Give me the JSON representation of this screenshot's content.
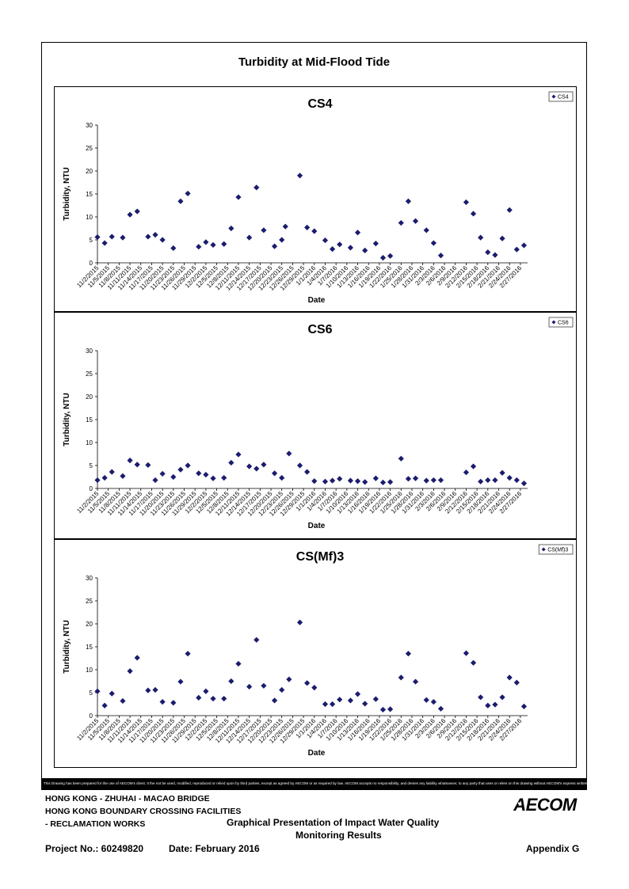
{
  "page": {
    "main_title": "Turbidity at Mid-Flood Tide",
    "disclaimer": "This Drawing has been prepared for the use of AECOM's client. It the not be used, modified, reproduced or relied upon by third parties, except as agreed by AECOM or as required by law. AECOM accepts no responsibility, and denies any liability whatsoever, to any party that uses or relies on this drawing without AECOM's express written consent.",
    "footer": {
      "line1": "HONG KONG - ZHUHAI - MACAO BRIDGE",
      "line2": "HONG KONG BOUNDARY CROSSING FACILITIES",
      "line3": "- RECLAMATION WORKS",
      "report_title_line1": "Graphical Presentation of Impact Water Quality",
      "report_title_line2": "Monitoring Results",
      "project_no": "Project No.: 60249820",
      "date": "Date: February 2016",
      "appendix": "Appendix G",
      "logo_text": "AECOM"
    },
    "colors": {
      "marker": "#1c1c6e",
      "border": "#000000"
    }
  },
  "chart_data": [
    {
      "type": "scatter",
      "title": "CS4",
      "xlabel": "Date",
      "ylabel": "Turbidity, NTU",
      "ylim": [
        0,
        30
      ],
      "yticks": [
        0,
        5,
        10,
        15,
        20,
        25,
        30
      ],
      "xlim": [
        "11/2/2015",
        "2/29/2016"
      ],
      "x_tick_labels": [
        "11/2/2015",
        "11/5/2015",
        "11/8/2015",
        "11/11/2015",
        "11/14/2015",
        "11/17/2015",
        "11/20/2015",
        "11/23/2015",
        "11/26/2015",
        "11/29/2015",
        "12/2/2015",
        "12/5/2015",
        "12/8/2015",
        "12/11/2015",
        "12/14/2015",
        "12/17/2015",
        "12/20/2015",
        "12/23/2015",
        "12/26/2015",
        "12/29/2015",
        "1/1/2016",
        "1/4/2016",
        "1/7/2016",
        "1/10/2016",
        "1/13/2016",
        "1/16/2016",
        "1/19/2016",
        "1/22/2016",
        "1/25/2016",
        "1/28/2016",
        "1/31/2016",
        "2/3/2016",
        "2/6/2016",
        "2/9/2016",
        "2/12/2016",
        "2/15/2016",
        "2/18/2016",
        "2/21/2016",
        "2/24/2016",
        "2/27/2016"
      ],
      "legend": {
        "label": "CS4",
        "position": "top-right"
      },
      "grid": false,
      "series": [
        {
          "name": "CS4",
          "points": [
            [
              "11/2/2015",
              5.6
            ],
            [
              "11/4/2015",
              4.3
            ],
            [
              "11/6/2015",
              5.7
            ],
            [
              "11/9/2015",
              5.5
            ],
            [
              "11/11/2015",
              10.5
            ],
            [
              "11/13/2015",
              11.2
            ],
            [
              "11/16/2015",
              5.7
            ],
            [
              "11/18/2015",
              6.1
            ],
            [
              "11/20/2015",
              5.0
            ],
            [
              "11/23/2015",
              3.2
            ],
            [
              "11/25/2015",
              13.4
            ],
            [
              "11/27/2015",
              15.1
            ],
            [
              "11/30/2015",
              3.5
            ],
            [
              "12/2/2015",
              4.5
            ],
            [
              "12/4/2015",
              3.9
            ],
            [
              "12/7/2015",
              4.1
            ],
            [
              "12/9/2015",
              7.5
            ],
            [
              "12/11/2015",
              14.3
            ],
            [
              "12/14/2015",
              5.5
            ],
            [
              "12/16/2015",
              16.4
            ],
            [
              "12/18/2015",
              7.1
            ],
            [
              "12/21/2015",
              3.6
            ],
            [
              "12/23/2015",
              5.0
            ],
            [
              "12/24/2015",
              7.9
            ],
            [
              "12/28/2015",
              19.0
            ],
            [
              "12/30/2015",
              7.7
            ],
            [
              "1/1/2016",
              6.9
            ],
            [
              "1/4/2016",
              4.9
            ],
            [
              "1/6/2016",
              3.0
            ],
            [
              "1/8/2016",
              4.0
            ],
            [
              "1/11/2016",
              3.3
            ],
            [
              "1/13/2016",
              6.6
            ],
            [
              "1/15/2016",
              2.7
            ],
            [
              "1/18/2016",
              4.2
            ],
            [
              "1/20/2016",
              1.1
            ],
            [
              "1/22/2016",
              1.5
            ],
            [
              "1/25/2016",
              8.7
            ],
            [
              "1/27/2016",
              13.4
            ],
            [
              "1/29/2016",
              9.1
            ],
            [
              "2/1/2016",
              7.1
            ],
            [
              "2/3/2016",
              4.3
            ],
            [
              "2/5/2016",
              1.6
            ],
            [
              "2/12/2016",
              13.2
            ],
            [
              "2/14/2016",
              10.7
            ],
            [
              "2/16/2016",
              5.5
            ],
            [
              "2/18/2016",
              2.3
            ],
            [
              "2/20/2016",
              1.7
            ],
            [
              "2/22/2016",
              5.3
            ],
            [
              "2/24/2016",
              11.5
            ],
            [
              "2/26/2016",
              2.9
            ],
            [
              "2/28/2016",
              3.8
            ]
          ]
        }
      ]
    },
    {
      "type": "scatter",
      "title": "CS6",
      "xlabel": "Date",
      "ylabel": "Turbidity, NTU",
      "ylim": [
        0,
        30
      ],
      "yticks": [
        0,
        5,
        10,
        15,
        20,
        25,
        30
      ],
      "xlim": [
        "11/2/2015",
        "2/29/2016"
      ],
      "x_tick_labels": [
        "11/2/2015",
        "11/5/2015",
        "11/8/2015",
        "11/11/2015",
        "11/14/2015",
        "11/17/2015",
        "11/20/2015",
        "11/23/2015",
        "11/26/2015",
        "11/29/2015",
        "12/2/2015",
        "12/5/2015",
        "12/8/2015",
        "12/11/2015",
        "12/14/2015",
        "12/17/2015",
        "12/20/2015",
        "12/23/2015",
        "12/26/2015",
        "12/29/2015",
        "1/1/2016",
        "1/4/2016",
        "1/7/2016",
        "1/10/2016",
        "1/13/2016",
        "1/16/2016",
        "1/19/2016",
        "1/22/2016",
        "1/25/2016",
        "1/28/2016",
        "1/31/2016",
        "2/3/2016",
        "2/6/2016",
        "2/9/2016",
        "2/12/2016",
        "2/15/2016",
        "2/18/2016",
        "2/21/2016",
        "2/24/2016",
        "2/27/2016"
      ],
      "legend": {
        "label": "CS6",
        "position": "top-right"
      },
      "grid": false,
      "series": [
        {
          "name": "CS6",
          "points": [
            [
              "11/2/2015",
              1.8
            ],
            [
              "11/4/2015",
              2.3
            ],
            [
              "11/6/2015",
              3.6
            ],
            [
              "11/9/2015",
              2.7
            ],
            [
              "11/11/2015",
              6.1
            ],
            [
              "11/13/2015",
              5.2
            ],
            [
              "11/16/2015",
              5.1
            ],
            [
              "11/18/2015",
              1.8
            ],
            [
              "11/20/2015",
              3.2
            ],
            [
              "11/23/2015",
              2.5
            ],
            [
              "11/25/2015",
              4.1
            ],
            [
              "11/27/2015",
              5.0
            ],
            [
              "11/30/2015",
              3.3
            ],
            [
              "12/2/2015",
              3.0
            ],
            [
              "12/4/2015",
              2.2
            ],
            [
              "12/7/2015",
              2.3
            ],
            [
              "12/9/2015",
              5.6
            ],
            [
              "12/11/2015",
              7.4
            ],
            [
              "12/14/2015",
              4.8
            ],
            [
              "12/16/2015",
              4.3
            ],
            [
              "12/18/2015",
              5.2
            ],
            [
              "12/21/2015",
              3.3
            ],
            [
              "12/23/2015",
              2.3
            ],
            [
              "12/25/2015",
              7.6
            ],
            [
              "12/28/2015",
              5.0
            ],
            [
              "12/30/2015",
              3.6
            ],
            [
              "1/1/2016",
              1.6
            ],
            [
              "1/4/2016",
              1.5
            ],
            [
              "1/6/2016",
              1.7
            ],
            [
              "1/8/2016",
              2.1
            ],
            [
              "1/11/2016",
              1.7
            ],
            [
              "1/13/2016",
              1.6
            ],
            [
              "1/15/2016",
              1.4
            ],
            [
              "1/18/2016",
              2.2
            ],
            [
              "1/20/2016",
              1.3
            ],
            [
              "1/22/2016",
              1.4
            ],
            [
              "1/25/2016",
              6.5
            ],
            [
              "1/27/2016",
              2.1
            ],
            [
              "1/29/2016",
              2.2
            ],
            [
              "2/1/2016",
              1.7
            ],
            [
              "2/3/2016",
              1.8
            ],
            [
              "2/5/2016",
              1.8
            ],
            [
              "2/12/2016",
              3.5
            ],
            [
              "2/14/2016",
              4.8
            ],
            [
              "2/16/2016",
              1.5
            ],
            [
              "2/18/2016",
              1.8
            ],
            [
              "2/20/2016",
              1.8
            ],
            [
              "2/22/2016",
              3.4
            ],
            [
              "2/24/2016",
              2.3
            ],
            [
              "2/26/2016",
              1.8
            ],
            [
              "2/28/2016",
              1.1
            ]
          ]
        }
      ]
    },
    {
      "type": "scatter",
      "title": "CS(Mf)3",
      "xlabel": "Date",
      "ylabel": "Turbidity, NTU",
      "ylim": [
        0,
        30
      ],
      "yticks": [
        0,
        5,
        10,
        15,
        20,
        25,
        30
      ],
      "xlim": [
        "11/2/2015",
        "2/29/2016"
      ],
      "x_tick_labels": [
        "11/2/2015",
        "11/5/2015",
        "11/8/2015",
        "11/11/2015",
        "11/14/2015",
        "11/17/2015",
        "11/20/2015",
        "11/23/2015",
        "11/26/2015",
        "11/29/2015",
        "12/2/2015",
        "12/5/2015",
        "12/8/2015",
        "12/11/2015",
        "12/14/2015",
        "12/17/2015",
        "12/20/2015",
        "12/23/2015",
        "12/26/2015",
        "12/29/2015",
        "1/1/2016",
        "1/4/2016",
        "1/7/2016",
        "1/10/2016",
        "1/13/2016",
        "1/16/2016",
        "1/19/2016",
        "1/22/2016",
        "1/25/2016",
        "1/28/2016",
        "1/31/2016",
        "2/3/2016",
        "2/6/2016",
        "2/9/2016",
        "2/12/2016",
        "2/15/2016",
        "2/18/2016",
        "2/21/2016",
        "2/24/2016",
        "2/27/2016"
      ],
      "legend": {
        "label": "CS(Mf)3",
        "position": "top-right"
      },
      "grid": false,
      "series": [
        {
          "name": "CS(Mf)3",
          "points": [
            [
              "11/2/2015",
              5.3
            ],
            [
              "11/4/2015",
              2.2
            ],
            [
              "11/6/2015",
              4.8
            ],
            [
              "11/9/2015",
              3.2
            ],
            [
              "11/11/2015",
              9.7
            ],
            [
              "11/13/2015",
              12.6
            ],
            [
              "11/16/2015",
              5.5
            ],
            [
              "11/18/2015",
              5.6
            ],
            [
              "11/20/2015",
              3.0
            ],
            [
              "11/23/2015",
              2.8
            ],
            [
              "11/25/2015",
              7.4
            ],
            [
              "11/27/2015",
              13.5
            ],
            [
              "11/30/2015",
              3.9
            ],
            [
              "12/2/2015",
              5.3
            ],
            [
              "12/4/2015",
              3.7
            ],
            [
              "12/7/2015",
              3.7
            ],
            [
              "12/9/2015",
              7.5
            ],
            [
              "12/11/2015",
              11.3
            ],
            [
              "12/14/2015",
              6.3
            ],
            [
              "12/16/2015",
              16.5
            ],
            [
              "12/18/2015",
              6.5
            ],
            [
              "12/21/2015",
              3.3
            ],
            [
              "12/23/2015",
              5.6
            ],
            [
              "12/25/2015",
              7.9
            ],
            [
              "12/28/2015",
              20.3
            ],
            [
              "12/30/2015",
              7.1
            ],
            [
              "1/1/2016",
              6.1
            ],
            [
              "1/4/2016",
              2.5
            ],
            [
              "1/6/2016",
              2.5
            ],
            [
              "1/8/2016",
              3.5
            ],
            [
              "1/11/2016",
              3.3
            ],
            [
              "1/13/2016",
              4.7
            ],
            [
              "1/15/2016",
              2.6
            ],
            [
              "1/18/2016",
              3.6
            ],
            [
              "1/20/2016",
              1.3
            ],
            [
              "1/22/2016",
              1.4
            ],
            [
              "1/25/2016",
              8.3
            ],
            [
              "1/27/2016",
              13.5
            ],
            [
              "1/29/2016",
              7.4
            ],
            [
              "2/1/2016",
              3.4
            ],
            [
              "2/3/2016",
              3.0
            ],
            [
              "2/5/2016",
              1.5
            ],
            [
              "2/12/2016",
              13.6
            ],
            [
              "2/14/2016",
              11.5
            ],
            [
              "2/16/2016",
              4.0
            ],
            [
              "2/18/2016",
              2.2
            ],
            [
              "2/20/2016",
              2.4
            ],
            [
              "2/22/2016",
              4.0
            ],
            [
              "2/24/2016",
              8.3
            ],
            [
              "2/26/2016",
              7.2
            ],
            [
              "2/28/2016",
              2.0
            ]
          ]
        }
      ]
    }
  ]
}
